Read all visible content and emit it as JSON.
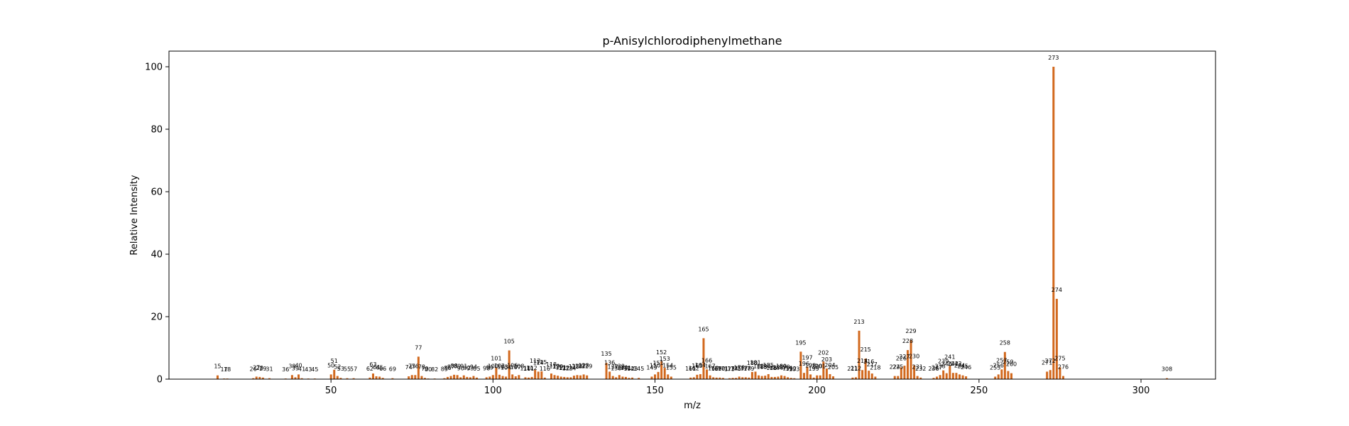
{
  "chart_data": {
    "type": "bar",
    "title": "p-Anisylchlorodiphenylmethane",
    "xlabel": "m/z",
    "ylabel": "Relative Intensity",
    "xlim": [
      0,
      323
    ],
    "ylim": [
      0,
      105
    ],
    "xticks": [
      50,
      100,
      150,
      200,
      250,
      300
    ],
    "yticks": [
      0,
      20,
      40,
      60,
      80,
      100
    ],
    "grid": false,
    "legend": "none",
    "bar_color": "#d2691e",
    "series": [
      {
        "x": [
          15,
          17,
          18,
          26,
          27,
          28,
          29,
          31,
          36,
          38,
          39,
          40,
          41,
          43,
          45,
          50,
          51,
          52,
          53,
          55,
          57,
          62,
          63,
          64,
          65,
          66,
          69,
          74,
          75,
          76,
          77,
          78,
          79,
          80,
          82,
          85,
          86,
          87,
          88,
          89,
          90,
          91,
          92,
          93,
          94,
          95,
          98,
          99,
          100,
          101,
          102,
          103,
          104,
          105,
          106,
          107,
          108,
          110,
          111,
          112,
          113,
          114,
          115,
          116,
          118,
          119,
          120,
          121,
          122,
          123,
          124,
          125,
          126,
          127,
          128,
          129,
          135,
          136,
          137,
          138,
          139,
          140,
          141,
          142,
          143,
          145,
          149,
          150,
          151,
          152,
          153,
          154,
          155,
          161,
          162,
          163,
          164,
          165,
          166,
          167,
          168,
          169,
          170,
          171,
          173,
          174,
          175,
          176,
          177,
          178,
          179,
          180,
          181,
          182,
          183,
          184,
          185,
          186,
          187,
          188,
          189,
          190,
          191,
          192,
          193,
          195,
          196,
          197,
          198,
          199,
          200,
          201,
          202,
          203,
          204,
          205,
          211,
          212,
          213,
          214,
          215,
          216,
          217,
          218,
          224,
          225,
          226,
          227,
          228,
          229,
          230,
          231,
          232,
          236,
          237,
          238,
          239,
          240,
          241,
          242,
          243,
          244,
          245,
          246,
          255,
          256,
          257,
          258,
          259,
          260,
          271,
          272,
          273,
          274,
          275,
          276,
          308
        ],
        "y": [
          1.2,
          0.2,
          0.2,
          0.3,
          0.8,
          0.7,
          0.5,
          0.3,
          0.2,
          1.3,
          0.6,
          1.5,
          0.3,
          0.2,
          0.2,
          1.5,
          3.0,
          1.0,
          0.4,
          0.3,
          0.3,
          0.5,
          1.8,
          0.9,
          0.8,
          0.4,
          0.3,
          0.9,
          1.3,
          1.3,
          7.2,
          1.0,
          0.4,
          0.2,
          0.2,
          0.3,
          0.7,
          1.0,
          1.4,
          1.3,
          0.6,
          1.2,
          0.7,
          0.6,
          1.0,
          0.5,
          0.6,
          0.8,
          1.3,
          3.7,
          1.4,
          1.0,
          0.8,
          9.2,
          1.5,
          0.9,
          1.3,
          0.6,
          0.5,
          0.7,
          3.0,
          2.4,
          2.5,
          0.5,
          1.8,
          1.3,
          1.1,
          0.8,
          0.7,
          0.6,
          0.6,
          1.1,
          1.3,
          1.2,
          1.5,
          1.2,
          5.2,
          2.4,
          1.0,
          0.6,
          1.3,
          0.8,
          0.7,
          0.4,
          0.5,
          0.4,
          0.8,
          1.5,
          2.3,
          5.7,
          3.6,
          1.5,
          0.8,
          0.5,
          0.6,
          1.4,
          1.6,
          13.1,
          3.1,
          1.2,
          0.6,
          0.5,
          0.5,
          0.4,
          0.3,
          0.4,
          0.4,
          0.8,
          0.6,
          0.6,
          0.5,
          2.3,
          2.4,
          1.2,
          1.0,
          1.1,
          1.6,
          0.7,
          0.7,
          0.8,
          1.2,
          1.0,
          0.6,
          0.4,
          0.3,
          8.8,
          2.0,
          4.0,
          1.5,
          0.5,
          1.2,
          1.2,
          5.6,
          3.4,
          1.6,
          0.9,
          0.5,
          0.6,
          15.5,
          2.9,
          6.6,
          2.7,
          1.8,
          0.8,
          1.0,
          1.0,
          3.8,
          4.3,
          9.3,
          12.5,
          4.4,
          1.0,
          0.5,
          0.4,
          0.8,
          1.3,
          2.8,
          1.9,
          4.2,
          2.0,
          2.0,
          1.5,
          1.2,
          0.9,
          0.8,
          1.5,
          3.1,
          8.7,
          2.6,
          1.9,
          2.4,
          2.9,
          100,
          25.7,
          3.8,
          1.0,
          0.3
        ]
      }
    ],
    "peak_labels": [
      "15",
      "17",
      "18",
      "26",
      "27",
      "28",
      "29",
      "31",
      "36",
      "38",
      "39",
      "40",
      "41",
      "43",
      "45",
      "50",
      "51",
      "52",
      "53",
      "55",
      "57",
      "62",
      "63",
      "64",
      "65",
      "66",
      "69",
      "74",
      "75",
      "76",
      "77",
      "78",
      "79",
      "80",
      "82",
      "85",
      "86",
      "87",
      "88",
      "89",
      "90",
      "91",
      "92",
      "93",
      "94",
      "95",
      "98",
      "99",
      "100",
      "101",
      "102",
      "103",
      "104",
      "105",
      "106",
      "107",
      "108",
      "110",
      "111",
      "112",
      "113",
      "114",
      "115",
      "116",
      "118",
      "119",
      "120",
      "121",
      "122",
      "123",
      "124",
      "125",
      "126",
      "127",
      "128",
      "129",
      "135",
      "136",
      "137",
      "138",
      "139",
      "140",
      "141",
      "142",
      "143",
      "145",
      "149",
      "150",
      "151",
      "152",
      "153",
      "154",
      "155",
      "161",
      "162",
      "163",
      "164",
      "165",
      "166",
      "167",
      "168",
      "169",
      "170",
      "171",
      "173",
      "174",
      "175",
      "176",
      "177",
      "178",
      "179",
      "180",
      "181",
      "182",
      "183",
      "184",
      "185",
      "186",
      "187",
      "188",
      "189",
      "190",
      "191",
      "192",
      "193",
      "195",
      "196",
      "197",
      "198",
      "199",
      "200",
      "201",
      "202",
      "203",
      "204",
      "205",
      "211",
      "212",
      "213",
      "214",
      "215",
      "216",
      "217",
      "218",
      "224",
      "225",
      "226",
      "227",
      "228",
      "229",
      "230",
      "231",
      "232",
      "236",
      "237",
      "238",
      "239",
      "240",
      "241",
      "242",
      "243",
      "244",
      "245",
      "246",
      "255",
      "256",
      "257",
      "258",
      "259",
      "260",
      "271",
      "272",
      "273",
      "274",
      "275",
      "276",
      "308"
    ]
  }
}
